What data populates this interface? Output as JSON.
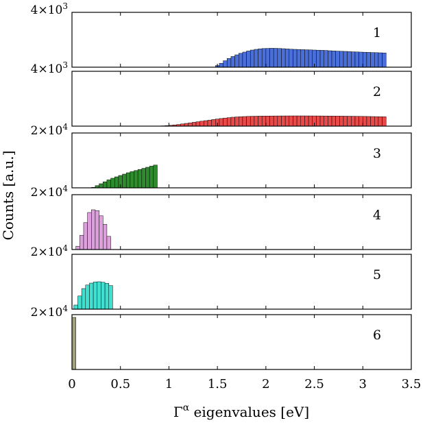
{
  "chart_data": {
    "type": "bar",
    "kind": "stacked histogram panels",
    "ylabel": "Counts [a.u.]",
    "xlabel_symbol": "Γ",
    "xlabel_superscript": "α",
    "xlabel_rest": " eigenvalues [eV]",
    "xlim": [
      0,
      3.5
    ],
    "xticks": [
      "0",
      "0.5",
      "1",
      "1.5",
      "2",
      "2.5",
      "3",
      "3.5"
    ],
    "xtick_values": [
      0,
      0.5,
      1,
      1.5,
      2,
      2.5,
      3,
      3.5
    ],
    "bin_width": 0.04,
    "panels": [
      {
        "label": "1",
        "color": "#4a6fd8",
        "ymax": 4000,
        "ymax_label_base": "4×10",
        "ymax_label_exp": "3",
        "x_start": 1.4,
        "values": [
          0,
          0,
          120,
          280,
          470,
          640,
          780,
          900,
          1010,
          1100,
          1180,
          1250,
          1300,
          1340,
          1360,
          1370,
          1380,
          1375,
          1365,
          1350,
          1330,
          1310,
          1300,
          1290,
          1280,
          1270,
          1260,
          1250,
          1240,
          1230,
          1220,
          1200,
          1185,
          1170,
          1160,
          1150,
          1140,
          1120,
          1110,
          1100,
          1090,
          1080,
          1070,
          1060,
          1050,
          1040
        ]
      },
      {
        "label": "2",
        "color": "#e84a4a",
        "ymax": 4000,
        "ymax_label_base": "4×10",
        "ymax_label_exp": "3",
        "x_start": 0.8,
        "values": [
          0,
          0,
          0,
          20,
          40,
          60,
          90,
          120,
          160,
          200,
          240,
          280,
          320,
          360,
          400,
          440,
          480,
          520,
          555,
          590,
          620,
          650,
          670,
          690,
          700,
          710,
          720,
          725,
          730,
          735,
          738,
          740,
          742,
          744,
          745,
          746,
          747,
          748,
          748,
          748,
          747,
          746,
          745,
          744,
          742,
          740,
          738,
          736,
          733,
          730,
          727,
          724,
          720,
          716,
          712,
          708,
          703,
          698,
          693,
          688,
          682
        ]
      },
      {
        "label": "3",
        "color": "#2e8b2e",
        "ymax": 20000,
        "ymax_label_base": "2×10",
        "ymax_label_exp": "4",
        "x_start": 0.2,
        "values": [
          200,
          800,
          1500,
          2200,
          2900,
          3500,
          4000,
          4500,
          5000,
          5500,
          5900,
          6300,
          6700,
          7100,
          7500,
          7900,
          8300
        ]
      },
      {
        "label": "4",
        "color": "#dda0dd",
        "ymax": 20000,
        "ymax_label_base": "2×10",
        "ymax_label_exp": "4",
        "x_start": 0.04,
        "values": [
          1200,
          5200,
          9800,
          13500,
          14500,
          14200,
          12300,
          9200,
          4800
        ]
      },
      {
        "label": "5",
        "color": "#40e0d0",
        "ymax": 20000,
        "ymax_label_base": "2×10",
        "ymax_label_exp": "4",
        "x_start": 0.02,
        "values": [
          1500,
          4800,
          7500,
          8800,
          9500,
          9900,
          10000,
          9800,
          9400,
          8600
        ]
      },
      {
        "label": "6",
        "color": "#a0a080",
        "ymax": 20000,
        "ymax_label_base": "2×10",
        "ymax_label_exp": "4",
        "x_start": 0.0,
        "values": [
          19000
        ]
      }
    ]
  }
}
